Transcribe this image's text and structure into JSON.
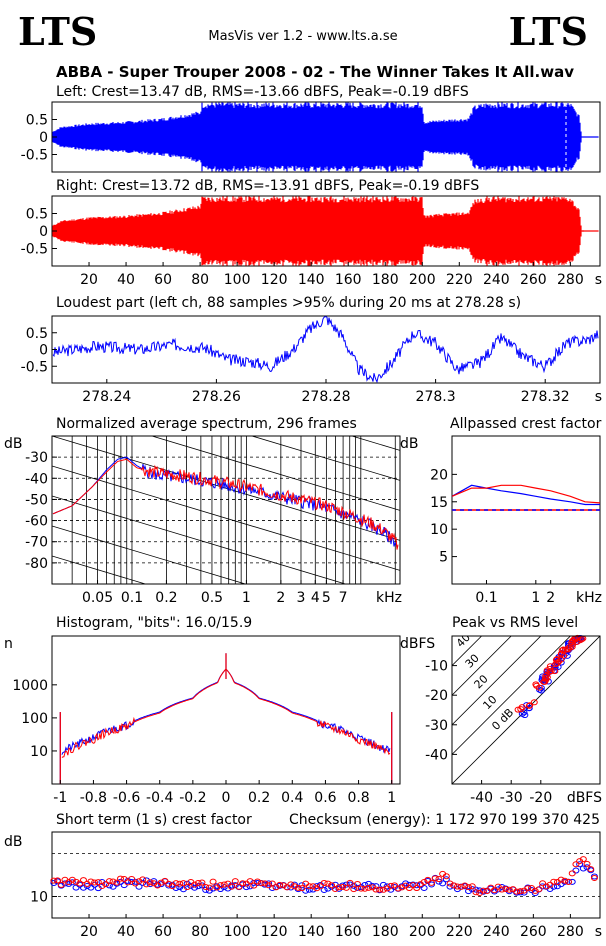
{
  "header": {
    "logo_left": "LTS",
    "logo_right": "LTS",
    "app_title": "MasVis ver 1.2 - www.lts.a.se",
    "file_title": "ABBA - Super Trouper 2008 - 02 - The Winner Takes It All.wav"
  },
  "colors": {
    "left": "#0000ff",
    "right": "#ff0000",
    "ref": "#000000",
    "bg": "#ffffff"
  },
  "chart_data": [
    {
      "id": "left-waveform",
      "type": "area",
      "title": "Left: Crest=13.47 dB, RMS=-13.66 dBFS, Peak=-0.19 dBFS",
      "ylim": [
        -1,
        1
      ],
      "yticks": [
        0.5,
        0,
        -0.5
      ],
      "ytick_labels": [
        "0.5",
        "0",
        "-0.5"
      ],
      "xlim": [
        0,
        296
      ],
      "series": [
        {
          "x": [
            0,
            5,
            20,
            40,
            60,
            80,
            81,
            100,
            150,
            200,
            201,
            210,
            225,
            228,
            235,
            240,
            260,
            280,
            285,
            286
          ],
          "values": [
            0.15,
            0.3,
            0.4,
            0.45,
            0.55,
            0.75,
            1.0,
            1.0,
            1.0,
            1.0,
            0.45,
            0.5,
            0.55,
            0.9,
            1.0,
            1.0,
            1.0,
            1.0,
            0.6,
            0.02
          ]
        }
      ]
    },
    {
      "id": "right-waveform",
      "type": "area",
      "title": "Right: Crest=13.72 dB, RMS=-13.91 dBFS, Peak=-0.19 dBFS",
      "ylim": [
        -1,
        1
      ],
      "yticks": [
        0.5,
        0,
        -0.5
      ],
      "ytick_labels": [
        "0.5",
        "0",
        "-0.5"
      ],
      "xlim": [
        0,
        296
      ],
      "xticks": [
        20,
        40,
        60,
        80,
        100,
        120,
        140,
        160,
        180,
        200,
        220,
        240,
        260,
        280
      ],
      "xtick_labels": [
        "20",
        "40",
        "60",
        "80",
        "100",
        "120",
        "140",
        "160",
        "180",
        "200",
        "220",
        "240",
        "260",
        "280"
      ],
      "xunit": "s",
      "series": [
        {
          "x": [
            0,
            5,
            20,
            40,
            60,
            80,
            81,
            100,
            150,
            200,
            201,
            210,
            225,
            228,
            235,
            240,
            260,
            280,
            285,
            286
          ],
          "values": [
            0.15,
            0.3,
            0.4,
            0.45,
            0.55,
            0.75,
            1.0,
            1.0,
            1.0,
            1.0,
            0.45,
            0.5,
            0.55,
            0.9,
            1.0,
            1.0,
            1.0,
            1.0,
            0.6,
            0.02
          ]
        }
      ]
    },
    {
      "id": "loudest-part",
      "type": "line",
      "title": "Loudest part (left  ch, 88 samples >95% during 20 ms at 278.28 s)",
      "xlim": [
        278.23,
        278.33
      ],
      "ylim": [
        -1,
        1
      ],
      "yticks": [
        0.5,
        0,
        -0.5
      ],
      "ytick_labels": [
        "0.5",
        "0",
        "-0.5"
      ],
      "xticks": [
        278.24,
        278.26,
        278.28,
        278.3,
        278.32
      ],
      "xtick_labels": [
        "278.24",
        "278.26",
        "278.28",
        "278.3",
        "278.32"
      ],
      "xunit": "s",
      "series": [
        {
          "x": [
            278.23,
            278.238,
            278.246,
            278.252,
            278.258,
            278.262,
            278.266,
            278.27,
            278.274,
            278.277,
            278.28,
            278.283,
            278.286,
            278.289,
            278.292,
            278.296,
            278.3,
            278.304,
            278.308,
            278.312,
            278.316,
            278.32,
            278.324,
            278.328,
            278.33
          ],
          "values": [
            -0.1,
            0.1,
            0.0,
            0.15,
            0.05,
            -0.3,
            -0.35,
            -0.5,
            0.0,
            0.6,
            0.95,
            0.4,
            -0.6,
            -0.9,
            -0.4,
            0.5,
            0.2,
            -0.6,
            -0.4,
            0.35,
            -0.2,
            -0.5,
            0.2,
            0.3,
            0.5
          ]
        }
      ]
    },
    {
      "id": "average-spectrum",
      "type": "line",
      "title": "Normalized average spectrum, 296 frames",
      "ylabel": "dB",
      "xscale": "log",
      "xlim": [
        0.02,
        22
      ],
      "ylim": [
        -90,
        -20
      ],
      "yticks": [
        -30,
        -40,
        -50,
        -60,
        -70,
        -80
      ],
      "ytick_labels": [
        "-30",
        "-40",
        "-50",
        "-60",
        "-70",
        "-80"
      ],
      "xticks": [
        0.05,
        0.1,
        0.2,
        0.5,
        1,
        2,
        3,
        4,
        5,
        7
      ],
      "xtick_labels": [
        "0.05",
        "0.1",
        "0.2",
        "0.5",
        "1",
        "2",
        "3",
        "4",
        "5",
        "7"
      ],
      "xunit": "kHz",
      "series": [
        {
          "name": "left",
          "x": [
            0.02,
            0.03,
            0.045,
            0.06,
            0.075,
            0.09,
            0.11,
            0.15,
            0.2,
            0.3,
            0.5,
            0.8,
            1.2,
            2,
            3,
            5,
            8,
            12,
            16,
            20,
            22
          ],
          "values": [
            -57,
            -53,
            -44,
            -36,
            -31,
            -30,
            -34,
            -38,
            -39,
            -40,
            -42,
            -44,
            -46,
            -49,
            -51,
            -54,
            -58,
            -62,
            -66,
            -70,
            -76
          ]
        },
        {
          "name": "right",
          "x": [
            0.02,
            0.03,
            0.045,
            0.06,
            0.075,
            0.09,
            0.11,
            0.15,
            0.2,
            0.3,
            0.5,
            0.8,
            1.2,
            2,
            3,
            5,
            8,
            12,
            16,
            20,
            22
          ],
          "values": [
            -57,
            -53,
            -44,
            -37,
            -32,
            -31,
            -35,
            -37,
            -38,
            -39,
            -41,
            -43,
            -45,
            -48,
            -50,
            -53,
            -57,
            -61,
            -65,
            -70,
            -75
          ]
        }
      ]
    },
    {
      "id": "allpassed-crest",
      "type": "line",
      "title": "Allpassed crest factor",
      "ylabel": "dB",
      "xscale": "log",
      "xlim": [
        0.02,
        20
      ],
      "ylim": [
        0,
        27
      ],
      "yticks": [
        20,
        15,
        10,
        5
      ],
      "ytick_labels": [
        "20",
        "15",
        "10",
        "5"
      ],
      "xticks": [
        0.1,
        1,
        2
      ],
      "xtick_labels": [
        "0.1",
        "1",
        "2"
      ],
      "xunit": "kHz",
      "reference_level": 13.5,
      "series": [
        {
          "name": "left",
          "x": [
            0.02,
            0.05,
            0.1,
            0.2,
            0.5,
            1,
            2,
            5,
            10,
            20
          ],
          "values": [
            16,
            18,
            17.5,
            17,
            16.5,
            16,
            15.5,
            15,
            14.5,
            14.5
          ]
        },
        {
          "name": "right",
          "x": [
            0.02,
            0.05,
            0.1,
            0.2,
            0.5,
            1,
            2,
            5,
            10,
            20
          ],
          "values": [
            16,
            17.5,
            17.5,
            18,
            18,
            17.5,
            17,
            16,
            15,
            14.8
          ]
        }
      ]
    },
    {
      "id": "histogram",
      "type": "line",
      "title": "Histogram, \"bits\": 16.0/15.9",
      "ylabel": "n",
      "yscale": "log",
      "ylim": [
        1,
        30000
      ],
      "yticks": [
        1000,
        100,
        10
      ],
      "ytick_labels": [
        "1000",
        "100",
        "10"
      ],
      "xlim": [
        -1.05,
        1.05
      ],
      "xticks": [
        -1,
        -0.8,
        -0.6,
        -0.4,
        -0.2,
        0,
        0.2,
        0.4,
        0.6,
        0.8,
        1
      ],
      "xtick_labels": [
        "-1",
        "-0.8",
        "-0.6",
        "-0.4",
        "-0.2",
        "0",
        "0.2",
        "0.4",
        "0.6",
        "0.8",
        "1"
      ],
      "series": [
        {
          "name": "left",
          "x": [
            -1,
            -0.99,
            -0.95,
            -0.9,
            -0.8,
            -0.6,
            -0.4,
            -0.2,
            -0.05,
            0,
            0.05,
            0.2,
            0.4,
            0.6,
            0.8,
            0.9,
            0.95,
            0.99,
            1
          ],
          "values": [
            150,
            10,
            12,
            15,
            25,
            60,
            150,
            400,
            1200,
            3000,
            1200,
            400,
            150,
            60,
            25,
            15,
            12,
            10,
            150
          ]
        },
        {
          "name": "right",
          "x": [
            -1,
            -0.99,
            -0.95,
            -0.9,
            -0.8,
            -0.6,
            -0.4,
            -0.2,
            -0.05,
            0,
            0.05,
            0.2,
            0.4,
            0.6,
            0.8,
            0.9,
            0.95,
            0.99,
            1
          ],
          "values": [
            150,
            8,
            10,
            14,
            22,
            55,
            140,
            380,
            1150,
            3000,
            1150,
            380,
            140,
            55,
            22,
            14,
            10,
            8,
            150
          ]
        }
      ]
    },
    {
      "id": "peak-vs-rms",
      "type": "scatter",
      "title": "Peak vs RMS level",
      "ylabel": "dBFS",
      "xunit": "dBFS",
      "xlim": [
        -50,
        0
      ],
      "ylim": [
        -50,
        0
      ],
      "yticks": [
        -10,
        -20,
        -30,
        -40
      ],
      "ytick_labels": [
        "-10",
        "-20",
        "-30",
        "-40"
      ],
      "xticks": [
        -40,
        -30,
        -20
      ],
      "xtick_labels": [
        "-40",
        "-30",
        "-20"
      ],
      "crest_lines": [
        40,
        30,
        20,
        10,
        0
      ],
      "crest_labels": [
        "40",
        "30",
        "20",
        "10",
        "0 dB"
      ],
      "series": [
        {
          "name": "left",
          "x": [
            -26,
            -24,
            -20,
            -19,
            -18,
            -17,
            -16,
            -15,
            -14,
            -13,
            -12,
            -11,
            -10,
            -9,
            -8,
            -7,
            -6
          ],
          "values": [
            -26,
            -24,
            -18,
            -14,
            -15,
            -13,
            -11,
            -10,
            -8,
            -7,
            -6,
            -4,
            -3,
            -2,
            -1,
            -0.5,
            -0.3
          ]
        },
        {
          "name": "right",
          "x": [
            -27,
            -23,
            -21,
            -19,
            -18,
            -17,
            -16,
            -15,
            -14,
            -13,
            -12,
            -11,
            -10,
            -9,
            -8,
            -7,
            -6
          ],
          "values": [
            -25,
            -23,
            -17,
            -15,
            -14,
            -12,
            -11,
            -9,
            -8,
            -6,
            -5,
            -4,
            -3,
            -2,
            -1,
            -0.6,
            -0.3
          ]
        }
      ]
    },
    {
      "id": "short-term-crest",
      "type": "scatter",
      "title": "Short term (1 s) crest factor",
      "annotation": "Checksum (energy):  1 172 970 199 370 425",
      "ylabel": "dB",
      "xlim": [
        0,
        296
      ],
      "ylim": [
        5,
        25
      ],
      "yticks": [
        10
      ],
      "ytick_labels": [
        "10"
      ],
      "dashed_levels": [
        20,
        10
      ],
      "xticks": [
        20,
        40,
        60,
        80,
        100,
        120,
        140,
        160,
        180,
        200,
        220,
        240,
        260,
        280
      ],
      "xtick_labels": [
        "20",
        "40",
        "60",
        "80",
        "100",
        "120",
        "140",
        "160",
        "180",
        "200",
        "220",
        "240",
        "260",
        "280"
      ],
      "xunit": "s",
      "series": [
        {
          "name": "left",
          "x": [
            0,
            20,
            40,
            60,
            80,
            100,
            120,
            140,
            160,
            180,
            200,
            210,
            220,
            230,
            240,
            260,
            280,
            285,
            290,
            296
          ],
          "values": [
            13,
            12.5,
            13,
            13,
            12,
            12.5,
            12.5,
            12,
            12.5,
            12,
            12.5,
            14,
            12,
            11,
            11.5,
            11.5,
            13,
            18,
            16,
            12
          ]
        },
        {
          "name": "right",
          "x": [
            0,
            20,
            40,
            60,
            80,
            100,
            120,
            140,
            160,
            180,
            200,
            210,
            220,
            230,
            240,
            260,
            280,
            285,
            290,
            296
          ],
          "values": [
            13.5,
            13,
            13.5,
            13,
            12.5,
            13,
            12.5,
            12.5,
            12.5,
            12,
            12.5,
            15,
            12,
            11.5,
            11.5,
            12,
            13.5,
            19,
            16.5,
            13
          ]
        }
      ]
    }
  ]
}
